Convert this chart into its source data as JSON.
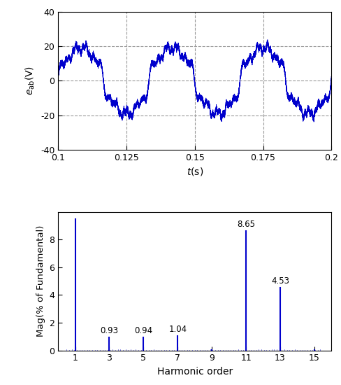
{
  "top_plot": {
    "t_start": 0.1,
    "t_end": 0.2,
    "frequency": 30,
    "amplitude": 20,
    "ylim": [
      -40,
      40
    ],
    "yticks": [
      -40,
      -20,
      0,
      20,
      40
    ],
    "xticks": [
      0.1,
      0.125,
      0.15,
      0.175,
      0.2
    ],
    "xlabel": "t(s)",
    "ylabel": "e_ab(V)",
    "grid_color": "#999999",
    "line_color": "#0000cc",
    "vlines": [
      0.125,
      0.15,
      0.175
    ],
    "hlines": [
      -20,
      0,
      20
    ]
  },
  "bottom_plot": {
    "harmonics": [
      1,
      3,
      5,
      7,
      9,
      11,
      13,
      15
    ],
    "magnitudes": [
      9.5,
      0.93,
      0.94,
      1.04,
      0.05,
      8.65,
      4.53,
      0.05
    ],
    "labels": [
      "",
      "0.93",
      "0.94",
      "1.04",
      "",
      "8.65",
      "4.53",
      ""
    ],
    "xlim": [
      0,
      16
    ],
    "ylim": [
      0,
      10
    ],
    "yticks": [
      0,
      2,
      4,
      6,
      8
    ],
    "xticks": [
      1,
      3,
      5,
      7,
      9,
      11,
      13,
      15
    ],
    "xlabel": "Harmonic order",
    "ylabel": "Mag(% of Fundamental)",
    "line_color": "#0000cc",
    "bar_width": 0.18
  }
}
